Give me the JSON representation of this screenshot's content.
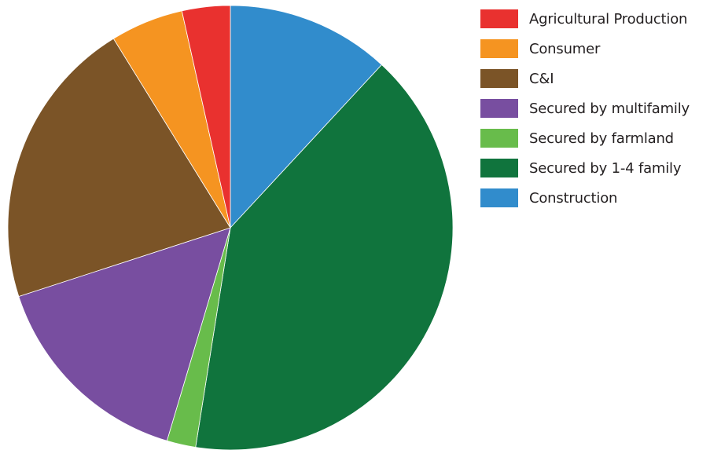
{
  "chart_data": {
    "type": "pie",
    "title": "",
    "legend_position": "right",
    "slices": [
      {
        "label": "Construction",
        "value": 11.9,
        "color": "#318ccc"
      },
      {
        "label": "Secured by 1-4 family",
        "value": 40.6,
        "color": "#10743d"
      },
      {
        "label": "Secured by farmland",
        "value": 2.1,
        "color": "#68bc4b"
      },
      {
        "label": "Secured by multifamily",
        "value": 15.4,
        "color": "#784ea0"
      },
      {
        "label": "C&I",
        "value": 21.2,
        "color": "#7b5427"
      },
      {
        "label": "Consumer",
        "value": 5.3,
        "color": "#f59421"
      },
      {
        "label": "Agricultural Production",
        "value": 3.5,
        "color": "#e9312f"
      }
    ],
    "legend": [
      {
        "label": "Agricultural Production",
        "color": "#e9312f"
      },
      {
        "label": "Consumer",
        "color": "#f59421"
      },
      {
        "label": "C&I",
        "color": "#7b5427"
      },
      {
        "label": "Secured by multifamily",
        "color": "#784ea0"
      },
      {
        "label": "Secured by farmland",
        "color": "#68bc4b"
      },
      {
        "label": "Secured by 1-4 family",
        "color": "#10743d"
      },
      {
        "label": "Construction",
        "color": "#318ccc"
      }
    ]
  }
}
